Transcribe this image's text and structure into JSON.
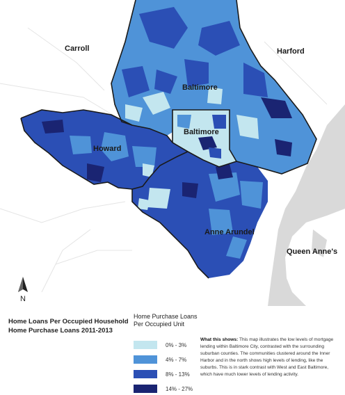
{
  "map": {
    "labels": {
      "carroll": "Carroll",
      "harford": "Harford",
      "baltimore_county": "Baltimore",
      "baltimore_city": "Baltimore",
      "howard": "Howard",
      "anne_arundel": "Anne Arundel",
      "queen_annes": "Queen Anne's"
    },
    "north_label": "N",
    "colors": {
      "bin1": "#c3e6ef",
      "bin2": "#4f93d8",
      "bin3": "#2b4fb5",
      "bin4": "#1a2472",
      "outside": "#ffffff",
      "water": "#d9d9d9",
      "border": "#1a1a1a"
    }
  },
  "title": {
    "line1": "Home Loans Per Occupied Household",
    "line2": "Home Purchase Loans 2011-2013"
  },
  "legend": {
    "title_line1": "Home Purchase Loans",
    "title_line2": "Per Occupied Unit",
    "items": [
      {
        "label": "0% - 3%",
        "color": "#c3e6ef"
      },
      {
        "label": "4% - 7%",
        "color": "#4f93d8"
      },
      {
        "label": "8% - 13%",
        "color": "#2b4fb5"
      },
      {
        "label": "14% - 27%",
        "color": "#1a2472"
      }
    ]
  },
  "description": {
    "heading": "What this shows:",
    "text": "This map illustrates the low levels of mortgage lending within Baltimore City, contrasted with the surrounding suburban counties. The communities clustered around the Inner Harbor and in the north shows high levels of lending, like the suburbs. This is in stark contrast with West and East Baltimore, which have much lower levels of lending activity."
  }
}
